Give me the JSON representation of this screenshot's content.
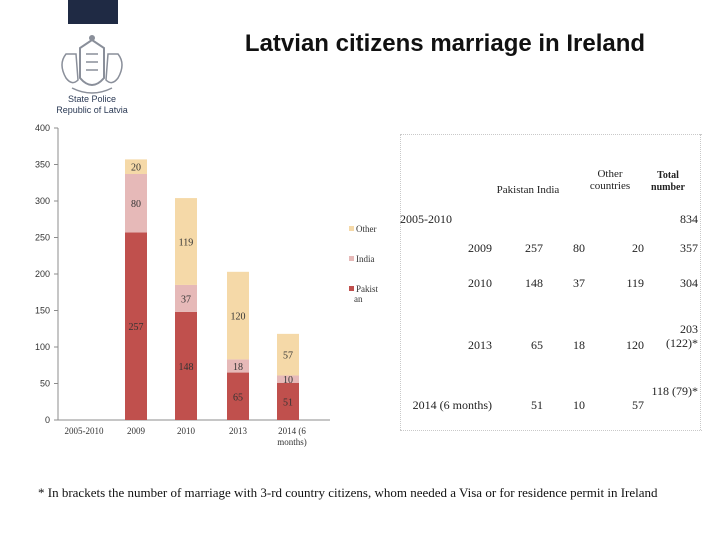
{
  "header": {
    "title": "Latvian citizens marriage in Ireland",
    "logo_line1": "State Police",
    "logo_line2": "Republic of Latvia"
  },
  "chart_data": {
    "type": "bar",
    "stacked": true,
    "categories": [
      "2005-2010",
      "2009",
      "2010",
      "2013",
      "2014 (6 months)"
    ],
    "series": [
      {
        "name": "Pakistan",
        "values": [
          0,
          257,
          148,
          65,
          51
        ],
        "color": "#c0504d"
      },
      {
        "name": "India",
        "values": [
          0,
          80,
          37,
          18,
          10
        ],
        "color": "#e6b9b8"
      },
      {
        "name": "Other",
        "values": [
          0,
          20,
          119,
          120,
          57
        ],
        "color": "#f5d9a8"
      }
    ],
    "legend_labels": [
      "Other",
      "India",
      "Pakist an"
    ],
    "ylim": [
      0,
      400
    ],
    "yticks": [
      0,
      50,
      100,
      150,
      200,
      250,
      300,
      350,
      400
    ],
    "legend_position": "right"
  },
  "table": {
    "headers": [
      "Pakistan",
      "India",
      "Other countries",
      "Total number"
    ],
    "summary_row": {
      "label": "2005-2010",
      "total": "834"
    },
    "rows": [
      {
        "label": "2009",
        "pakistan": "257",
        "india": "80",
        "other": "20",
        "total": "357"
      },
      {
        "label": "2010",
        "pakistan": "148",
        "india": "37",
        "other": "119",
        "total": "304"
      },
      {
        "label": "2013",
        "pakistan": "65",
        "india": "18",
        "other": "120",
        "total": "203 (122)*"
      },
      {
        "label": "2014 (6 months)",
        "pakistan": "51",
        "india": "10",
        "other": "57",
        "total": "118 (79)*"
      }
    ]
  },
  "footnote": "* In brackets the number of marriage with 3-rd country citizens, whom needed a Visa or for residence permit in Ireland"
}
